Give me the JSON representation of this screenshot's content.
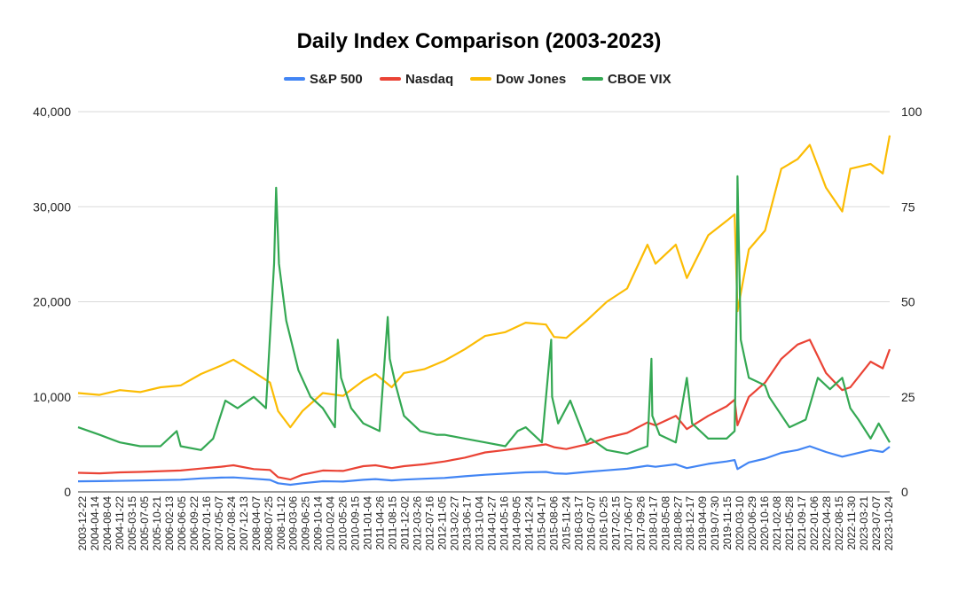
{
  "chart_data": {
    "type": "line",
    "title": "Daily Index Comparison (2003-2023)",
    "legend_position": "top",
    "grid": true,
    "left_axis": {
      "ylim": [
        0,
        40000
      ],
      "ticks": [
        0,
        10000,
        20000,
        30000,
        40000
      ],
      "tick_labels": [
        "0",
        "10,000",
        "20,000",
        "30,000",
        "40,000"
      ]
    },
    "right_axis": {
      "ylim": [
        0,
        100
      ],
      "ticks": [
        0,
        25,
        50,
        75,
        100
      ],
      "tick_labels": [
        "0",
        "25",
        "50",
        "75",
        "100"
      ]
    },
    "x_tick_labels": [
      "2003-12-22",
      "2004-04-14",
      "2004-08-04",
      "2004-11-22",
      "2005-03-15",
      "2005-07-05",
      "2005-10-21",
      "2006-02-13",
      "2006-06-05",
      "2006-09-22",
      "2007-01-16",
      "2007-05-07",
      "2007-08-24",
      "2007-12-13",
      "2008-04-07",
      "2008-07-25",
      "2008-11-12",
      "2009-03-06",
      "2009-06-25",
      "2009-10-14",
      "2010-02-04",
      "2010-05-26",
      "2010-09-15",
      "2011-01-04",
      "2011-04-26",
      "2011-08-15",
      "2011-12-02",
      "2012-03-26",
      "2012-07-16",
      "2012-11-05",
      "2013-02-27",
      "2013-06-17",
      "2013-10-04",
      "2014-01-27",
      "2014-05-16",
      "2014-09-05",
      "2014-12-24",
      "2015-04-17",
      "2015-08-06",
      "2015-11-24",
      "2016-03-17",
      "2016-07-07",
      "2016-10-25",
      "2017-02-15",
      "2017-06-07",
      "2017-09-26",
      "2018-01-17",
      "2018-05-08",
      "2018-08-27",
      "2018-12-17",
      "2019-04-09",
      "2019-07-30",
      "2019-11-15",
      "2020-03-10",
      "2020-06-29",
      "2020-10-16",
      "2021-02-08",
      "2021-05-28",
      "2021-09-17",
      "2022-01-06",
      "2022-04-28",
      "2022-08-15",
      "2022-11-30",
      "2023-03-21",
      "2023-07-07",
      "2023-10-24"
    ],
    "series": [
      {
        "name": "S&P 500",
        "axis": "left",
        "color": "#4285f4",
        "x": [
          2003.97,
          2004.5,
          2005.5,
          2006.5,
          2007.0,
          2007.5,
          2007.8,
          2008.3,
          2008.7,
          2008.9,
          2009.2,
          2009.5,
          2010.0,
          2010.5,
          2011.0,
          2011.3,
          2011.7,
          2012.0,
          2012.5,
          2013.0,
          2013.5,
          2014.0,
          2014.5,
          2015.0,
          2015.5,
          2015.7,
          2016.0,
          2016.5,
          2017.0,
          2017.5,
          2018.0,
          2018.2,
          2018.7,
          2018.97,
          2019.5,
          2019.95,
          2020.15,
          2020.22,
          2020.5,
          2020.9,
          2021.3,
          2021.7,
          2022.0,
          2022.4,
          2022.8,
          2023.0,
          2023.5,
          2023.8,
          2023.97
        ],
        "values": [
          1110,
          1125,
          1195,
          1275,
          1420,
          1500,
          1520,
          1380,
          1260,
          900,
          750,
          900,
          1120,
          1080,
          1270,
          1340,
          1200,
          1290,
          1380,
          1460,
          1640,
          1800,
          1920,
          2050,
          2100,
          1950,
          1900,
          2100,
          2270,
          2430,
          2750,
          2640,
          2900,
          2500,
          2950,
          3200,
          3350,
          2400,
          3100,
          3500,
          4100,
          4400,
          4800,
          4200,
          3700,
          3900,
          4400,
          4200,
          4750
        ]
      },
      {
        "name": "Nasdaq",
        "axis": "left",
        "color": "#ea4335",
        "x": [
          2003.97,
          2004.5,
          2005.0,
          2005.5,
          2006.5,
          2007.0,
          2007.5,
          2007.8,
          2008.3,
          2008.7,
          2008.9,
          2009.2,
          2009.5,
          2010.0,
          2010.5,
          2011.0,
          2011.3,
          2011.7,
          2012.0,
          2012.5,
          2013.0,
          2013.5,
          2014.0,
          2014.5,
          2015.0,
          2015.5,
          2015.7,
          2016.0,
          2016.5,
          2017.0,
          2017.5,
          2018.0,
          2018.2,
          2018.7,
          2018.97,
          2019.5,
          2019.95,
          2020.15,
          2020.22,
          2020.5,
          2020.9,
          2021.3,
          2021.7,
          2022.0,
          2022.4,
          2022.8,
          2023.0,
          2023.5,
          2023.8,
          2023.97
        ],
        "values": [
          2000,
          1950,
          2050,
          2100,
          2250,
          2450,
          2650,
          2800,
          2400,
          2300,
          1550,
          1300,
          1800,
          2250,
          2200,
          2700,
          2800,
          2500,
          2700,
          2900,
          3200,
          3600,
          4150,
          4400,
          4700,
          5000,
          4700,
          4500,
          5000,
          5700,
          6200,
          7300,
          7000,
          8000,
          6600,
          8000,
          9000,
          9700,
          7000,
          10000,
          11500,
          14000,
          15500,
          16000,
          12500,
          10700,
          11000,
          13700,
          13000,
          15000
        ]
      },
      {
        "name": "Dow Jones",
        "axis": "left",
        "color": "#fbbc04",
        "x": [
          2003.97,
          2004.5,
          2005.0,
          2005.5,
          2006.0,
          2006.5,
          2007.0,
          2007.5,
          2007.8,
          2008.3,
          2008.7,
          2008.9,
          2009.2,
          2009.5,
          2010.0,
          2010.5,
          2011.0,
          2011.3,
          2011.7,
          2012.0,
          2012.5,
          2013.0,
          2013.5,
          2014.0,
          2014.5,
          2015.0,
          2015.5,
          2015.7,
          2016.0,
          2016.5,
          2017.0,
          2017.5,
          2018.0,
          2018.2,
          2018.7,
          2018.97,
          2019.5,
          2019.95,
          2020.15,
          2020.22,
          2020.5,
          2020.9,
          2021.3,
          2021.7,
          2022.0,
          2022.4,
          2022.8,
          2023.0,
          2023.5,
          2023.8,
          2023.97
        ],
        "values": [
          10400,
          10200,
          10700,
          10500,
          11000,
          11200,
          12400,
          13300,
          13900,
          12600,
          11500,
          8500,
          6800,
          8500,
          10400,
          10100,
          11700,
          12400,
          11000,
          12500,
          12900,
          13800,
          15000,
          16400,
          16800,
          17800,
          17600,
          16300,
          16200,
          18000,
          20000,
          21400,
          26000,
          24000,
          26000,
          22500,
          27000,
          28500,
          29200,
          19000,
          25500,
          27500,
          34000,
          35000,
          36500,
          32000,
          29500,
          34000,
          34500,
          33500,
          37500
        ]
      },
      {
        "name": "CBOE VIX",
        "axis": "right",
        "color": "#34a853",
        "x": [
          2003.97,
          2004.5,
          2005.0,
          2005.5,
          2006.0,
          2006.4,
          2006.5,
          2007.0,
          2007.3,
          2007.6,
          2007.9,
          2008.3,
          2008.6,
          2008.8,
          2008.85,
          2008.92,
          2009.1,
          2009.4,
          2009.7,
          2010.0,
          2010.3,
          2010.37,
          2010.45,
          2010.7,
          2011.0,
          2011.4,
          2011.6,
          2011.65,
          2011.8,
          2012.0,
          2012.4,
          2012.8,
          2013.0,
          2013.5,
          2014.0,
          2014.5,
          2014.8,
          2015.0,
          2015.4,
          2015.63,
          2015.65,
          2015.8,
          2016.1,
          2016.5,
          2016.6,
          2017.0,
          2017.5,
          2018.0,
          2018.1,
          2018.12,
          2018.3,
          2018.7,
          2018.97,
          2019.1,
          2019.5,
          2019.95,
          2020.15,
          2020.2,
          2020.22,
          2020.3,
          2020.5,
          2020.9,
          2021.0,
          2021.5,
          2021.9,
          2022.2,
          2022.5,
          2022.8,
          2023.0,
          2023.2,
          2023.5,
          2023.7,
          2023.97
        ],
        "values": [
          17,
          15,
          13,
          12,
          12,
          16,
          12,
          11,
          14,
          24,
          22,
          25,
          22,
          60,
          80,
          60,
          45,
          32,
          25,
          22,
          17,
          40,
          30,
          22,
          18,
          16,
          46,
          35,
          28,
          20,
          16,
          15,
          15,
          14,
          13,
          12,
          16,
          17,
          13,
          40,
          25,
          18,
          24,
          13,
          14,
          11,
          10,
          12,
          35,
          20,
          15,
          13,
          30,
          18,
          14,
          14,
          16,
          50,
          83,
          40,
          30,
          28,
          25,
          17,
          19,
          30,
          27,
          30,
          22,
          19,
          14,
          18,
          13
        ]
      }
    ]
  }
}
